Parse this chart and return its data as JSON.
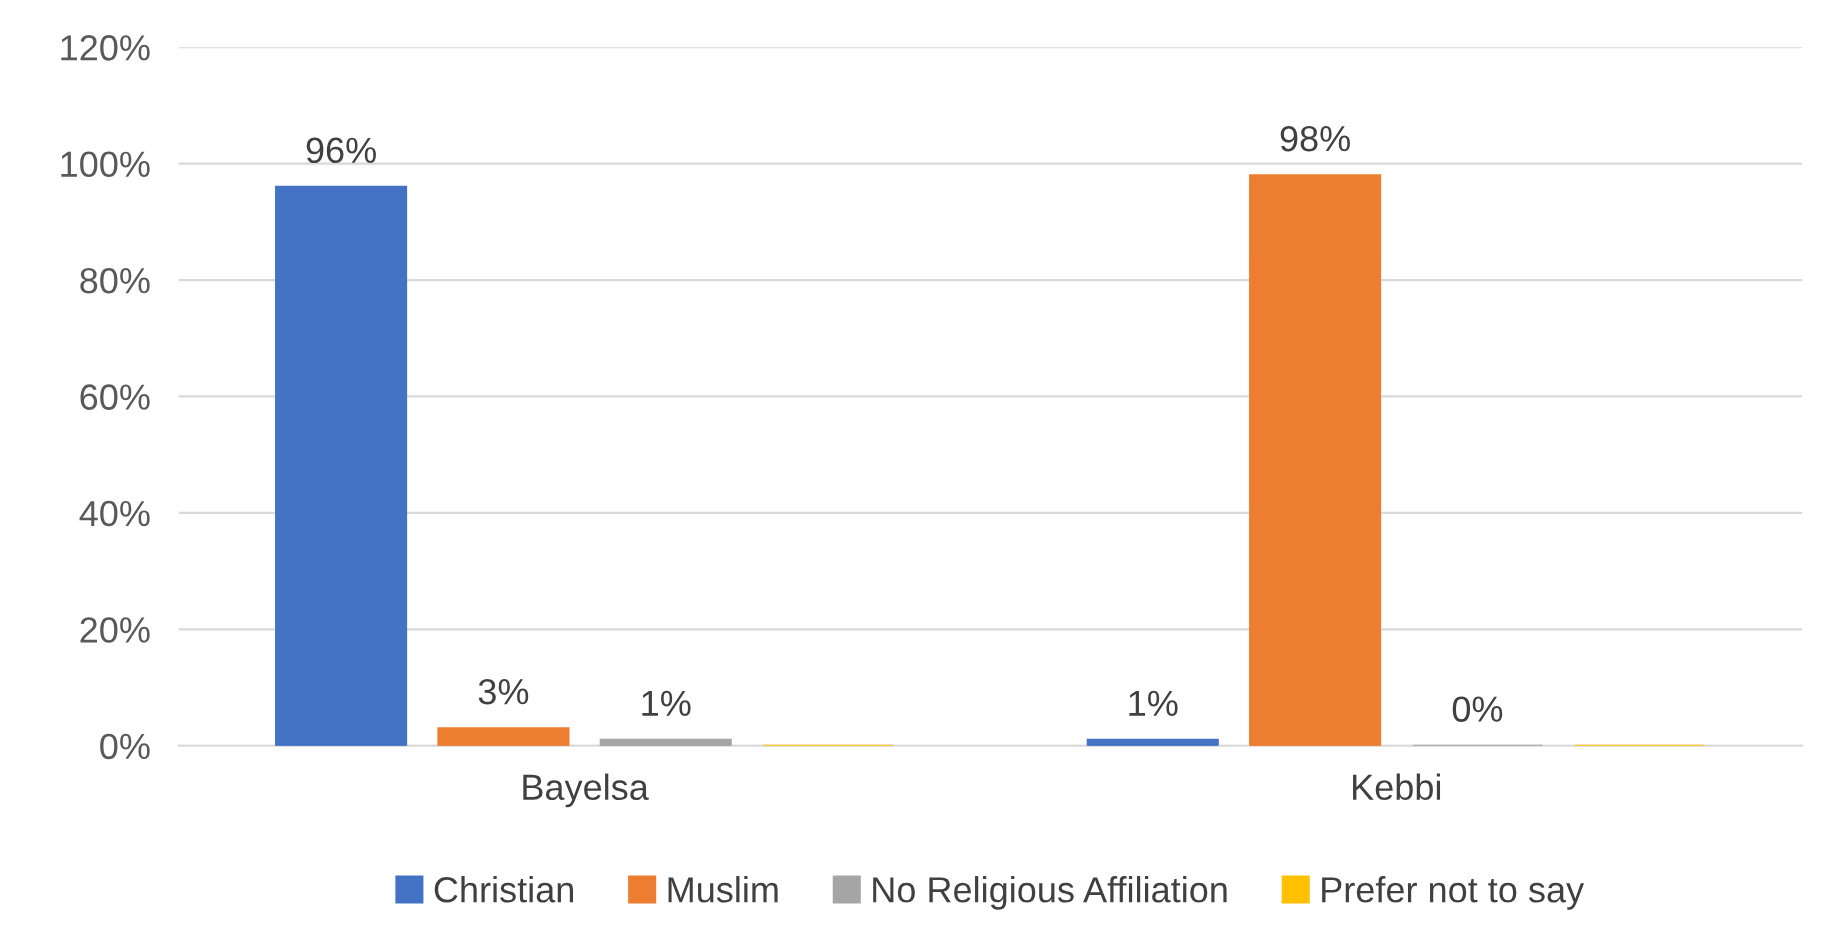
{
  "chart_data": {
    "type": "bar",
    "categories": [
      "Bayelsa",
      "Kebbi"
    ],
    "series": [
      {
        "name": "Christian",
        "color": "#4472c4",
        "values": [
          96,
          1
        ],
        "value_labels": [
          "96%",
          "1%"
        ]
      },
      {
        "name": "Muslim",
        "color": "#ed7d31",
        "values": [
          3,
          98
        ],
        "value_labels": [
          "3%",
          "98%"
        ]
      },
      {
        "name": "No Religious Affiliation",
        "color": "#a5a5a5",
        "values": [
          1,
          0
        ],
        "value_labels": [
          "1%",
          "0%"
        ]
      },
      {
        "name": "Prefer not to say",
        "color": "#ffc000",
        "values": [
          0,
          0
        ],
        "value_labels": [
          null,
          null
        ]
      }
    ],
    "ylim": [
      0,
      120
    ],
    "yticks": [
      {
        "value": 0,
        "label": "0%"
      },
      {
        "value": 20,
        "label": "20%"
      },
      {
        "value": 40,
        "label": "40%"
      },
      {
        "value": 60,
        "label": "60%"
      },
      {
        "value": 80,
        "label": "80%"
      },
      {
        "value": 100,
        "label": "100%"
      },
      {
        "value": 120,
        "label": "120%"
      }
    ],
    "grid": "y",
    "legend": "bottom"
  }
}
